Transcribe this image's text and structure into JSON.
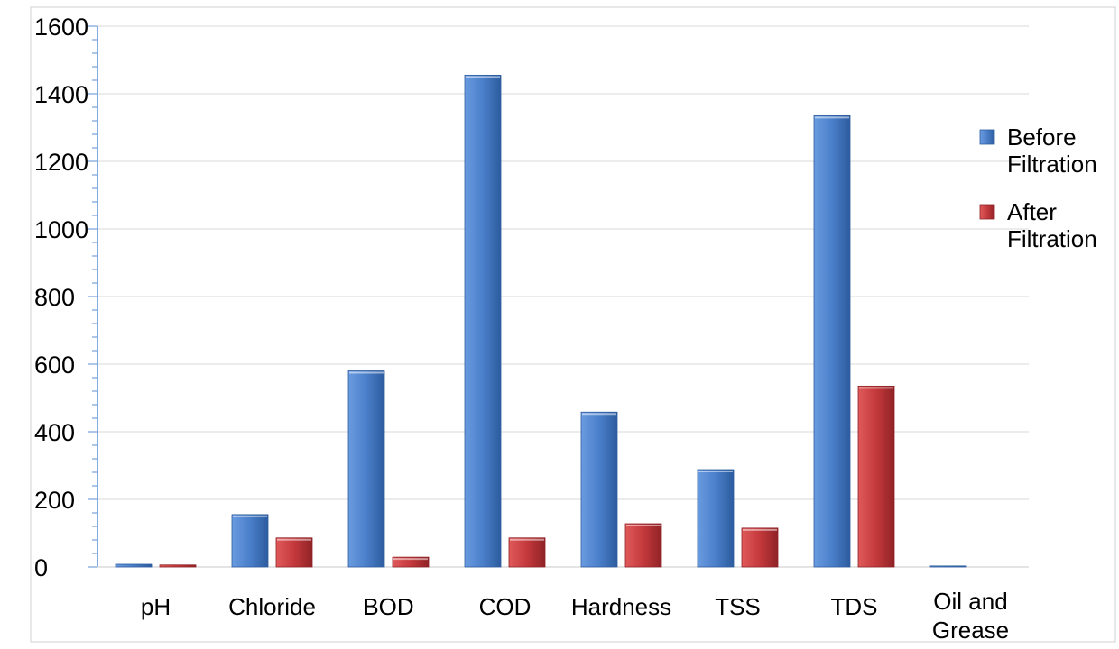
{
  "chart_data": {
    "type": "bar",
    "categories": [
      "pH",
      "Chloride",
      "BOD",
      "COD",
      "Hardness",
      "TSS",
      "TDS",
      "Oil and Grease"
    ],
    "series": [
      {
        "name": "Before Filtration",
        "values": [
          8,
          155,
          580,
          1455,
          458,
          288,
          1335,
          3
        ],
        "color": "#4a7fc9"
      },
      {
        "name": "After Filtration",
        "values": [
          6,
          86,
          29,
          86,
          128,
          115,
          535,
          0
        ],
        "color": "#c4393c"
      }
    ],
    "y_ticks": [
      0,
      200,
      400,
      600,
      800,
      1000,
      1200,
      1400,
      1600
    ],
    "ylim": [
      0,
      1600
    ],
    "grid": true,
    "legend_position": "right"
  }
}
